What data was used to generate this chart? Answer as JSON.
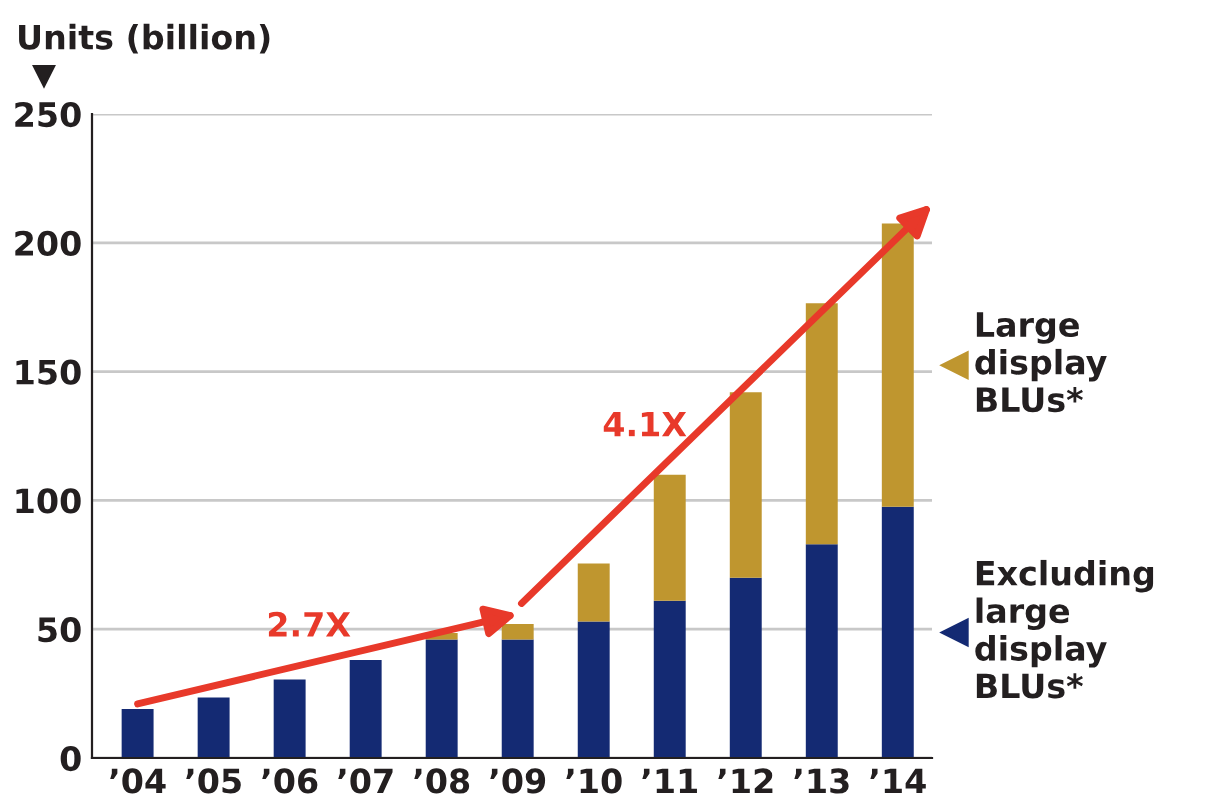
{
  "chart_data": {
    "type": "bar",
    "stacked": true,
    "ylabel": "Units (billion)",
    "categories": [
      "’04",
      "’05",
      "’06",
      "’07",
      "’08",
      "’09",
      "’10",
      "’11",
      "’12",
      "’13",
      "’14"
    ],
    "series": [
      {
        "name": "Excluding large display BLUs*",
        "color": "#142a73",
        "values": [
          19,
          23.5,
          30.5,
          38,
          46,
          46,
          53,
          61,
          70,
          83,
          97.5
        ]
      },
      {
        "name": "Large display BLUs*",
        "color": "#bf962f",
        "values": [
          0,
          0,
          0,
          0,
          2.5,
          6,
          22.5,
          49,
          72,
          93.5,
          110
        ]
      }
    ],
    "ylim": [
      0,
      250
    ],
    "yticks": [
      0,
      50,
      100,
      150,
      200,
      250
    ],
    "grid": "y",
    "legend": "right",
    "annotations": [
      "2.7X",
      "4.1X"
    ]
  }
}
